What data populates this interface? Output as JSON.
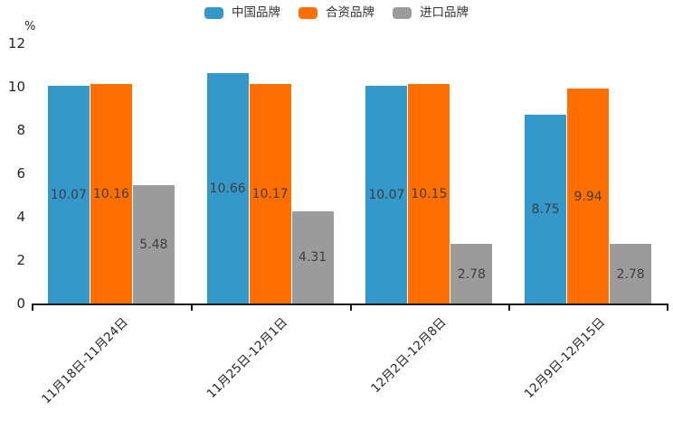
{
  "chart_data": {
    "type": "bar",
    "title": "",
    "xlabel": "",
    "ylabel": "%",
    "ylim": [
      0,
      12
    ],
    "ytick_step": 2,
    "grid": false,
    "legend_position": "top-center",
    "categories": [
      "11月18日-11月24日",
      "11月25日-12月1日",
      "12月2日-12月8日",
      "12月9日-12月15日"
    ],
    "series": [
      {
        "name": "中国品牌",
        "color": "#3498cb",
        "values": [
          10.07,
          10.66,
          10.07,
          8.75
        ]
      },
      {
        "name": "合资品牌",
        "color": "#ff6f00",
        "values": [
          10.16,
          10.17,
          10.15,
          9.94
        ]
      },
      {
        "name": "进口品牌",
        "color": "#9b9b9b",
        "values": [
          5.48,
          4.31,
          2.78,
          2.78
        ]
      }
    ],
    "value_labels_shown": true
  },
  "colors": {
    "background": "#ffffff",
    "axis": "#1a1a1a",
    "tick_text": "#262626",
    "value_label_text": "#3d3d3d",
    "legend_text": "#333333"
  }
}
